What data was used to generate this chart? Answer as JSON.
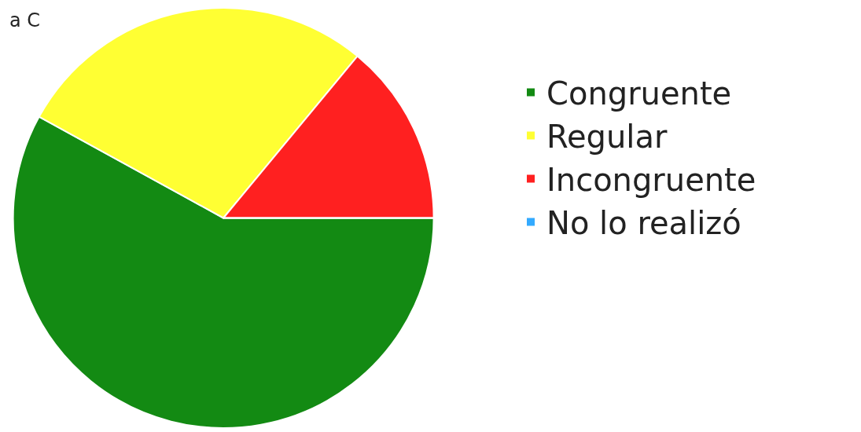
{
  "chart_data": {
    "type": "pie",
    "title": "a C",
    "categories": [
      "Congruente",
      "Regular",
      "Incongruente",
      "No lo realizó"
    ],
    "values": [
      58,
      28,
      14,
      0
    ],
    "colors": [
      "#138a13",
      "#ffff33",
      "#ff2020",
      "#33aaff"
    ],
    "legend": "right"
  }
}
